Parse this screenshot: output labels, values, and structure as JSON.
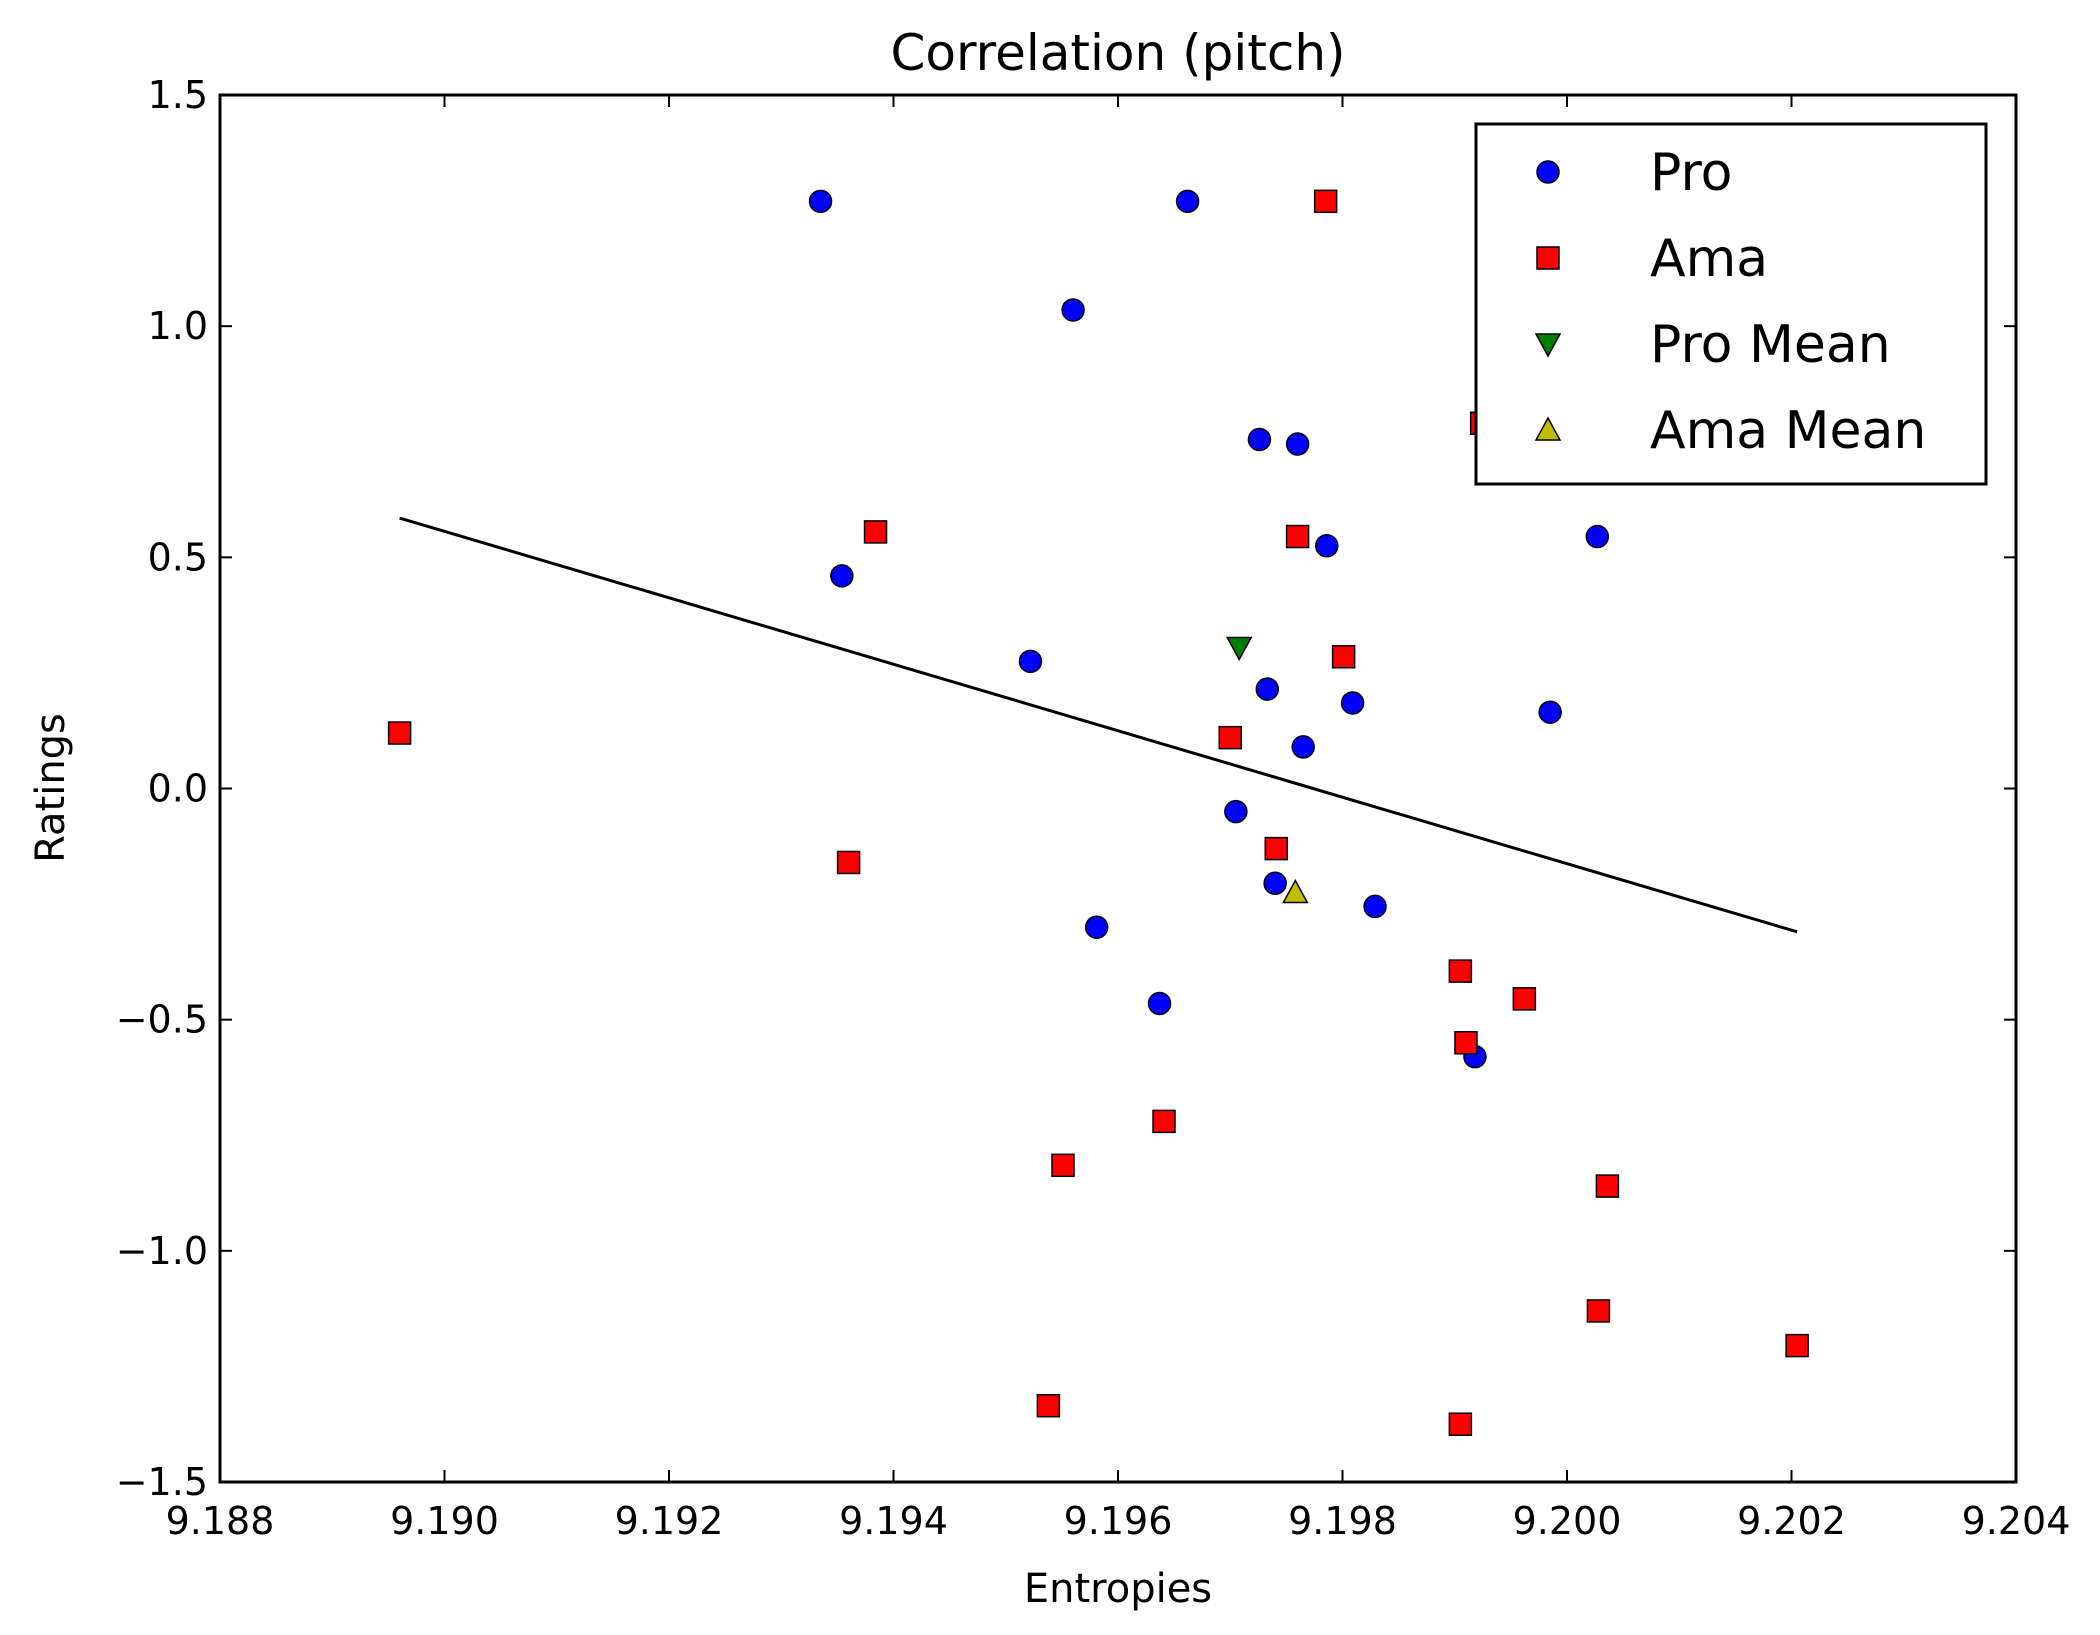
{
  "chart_data": {
    "type": "scatter",
    "title": "Correlation (pitch)",
    "xlabel": "Entropies",
    "ylabel": "Ratings",
    "xlim": [
      9.188,
      9.204
    ],
    "ylim": [
      -1.5,
      1.5
    ],
    "xticks": [
      9.188,
      9.19,
      9.192,
      9.194,
      9.196,
      9.198,
      9.2,
      9.202,
      9.204
    ],
    "xtick_labels": [
      "9.188",
      "9.190",
      "9.192",
      "9.194",
      "9.196",
      "9.198",
      "9.200",
      "9.202",
      "9.204"
    ],
    "yticks": [
      -1.5,
      -1.0,
      -0.5,
      0.0,
      0.5,
      1.0,
      1.5
    ],
    "ytick_labels": [
      "−1.5",
      "−1.0",
      "−0.5",
      "0.0",
      "0.5",
      "1.0",
      "1.5"
    ],
    "grid": false,
    "legend_position": "top-right",
    "series": [
      {
        "name": "Pro",
        "marker": "circle",
        "color": "#0000ff",
        "points": [
          [
            9.19335,
            1.27
          ],
          [
            9.19662,
            1.27
          ],
          [
            9.1956,
            1.035
          ],
          [
            9.19726,
            0.755
          ],
          [
            9.1976,
            0.745
          ],
          [
            9.19786,
            0.525
          ],
          [
            9.20027,
            0.545
          ],
          [
            9.19354,
            0.46
          ],
          [
            9.19522,
            0.275
          ],
          [
            9.19733,
            0.215
          ],
          [
            9.19809,
            0.185
          ],
          [
            9.19985,
            0.165
          ],
          [
            9.19765,
            0.09
          ],
          [
            9.19705,
            -0.05
          ],
          [
            9.1974,
            -0.205
          ],
          [
            9.19829,
            -0.255
          ],
          [
            9.19581,
            -0.3
          ],
          [
            9.19637,
            -0.465
          ],
          [
            9.19918,
            -0.58
          ]
        ]
      },
      {
        "name": "Ama",
        "marker": "square",
        "color": "#ff0000",
        "points": [
          [
            9.19785,
            1.27
          ],
          [
            9.19924,
            0.79
          ],
          [
            9.19384,
            0.555
          ],
          [
            9.1976,
            0.545
          ],
          [
            9.19801,
            0.285
          ],
          [
            9.1896,
            0.12
          ],
          [
            9.197,
            0.11
          ],
          [
            9.1936,
            -0.16
          ],
          [
            9.19741,
            -0.13
          ],
          [
            9.19905,
            -0.395
          ],
          [
            9.19962,
            -0.455
          ],
          [
            9.1991,
            -0.55
          ],
          [
            9.19641,
            -0.72
          ],
          [
            9.19551,
            -0.815
          ],
          [
            9.20036,
            -0.86
          ],
          [
            9.20028,
            -1.13
          ],
          [
            9.20205,
            -1.205
          ],
          [
            9.19538,
            -1.335
          ],
          [
            9.19905,
            -1.375
          ]
        ]
      },
      {
        "name": "Pro Mean",
        "marker": "triangle-down",
        "color": "#008000",
        "points": [
          [
            9.19708,
            0.305
          ]
        ]
      },
      {
        "name": "Ama Mean",
        "marker": "triangle-up",
        "color": "#bfbf00",
        "points": [
          [
            9.19758,
            -0.225
          ]
        ]
      }
    ],
    "fit_line": {
      "x": [
        9.1896,
        9.20205
      ],
      "y": [
        0.585,
        -0.31
      ],
      "color": "#000000"
    }
  }
}
